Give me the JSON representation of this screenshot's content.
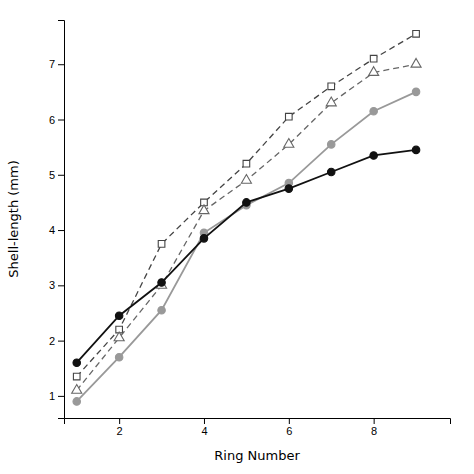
{
  "chart_data": {
    "type": "line",
    "x_label": "Ring Number",
    "y_label": "Shell-length (mm)",
    "x": [
      1,
      2,
      3,
      4,
      5,
      6,
      7,
      8,
      9
    ],
    "series": [
      {
        "color": "#444444",
        "marker": "square-open",
        "line_style": "dashed",
        "values": [
          1.35,
          2.2,
          3.75,
          4.5,
          5.2,
          6.05,
          6.6,
          7.1,
          7.55
        ]
      },
      {
        "color": "#666666",
        "marker": "triangle-open",
        "line_style": "dashed",
        "values": [
          1.1,
          2.05,
          3.0,
          4.35,
          4.9,
          5.55,
          6.3,
          6.85,
          7.0
        ]
      },
      {
        "color": "#999999",
        "marker": "circle",
        "line_style": "solid",
        "values": [
          0.9,
          1.7,
          2.55,
          3.95,
          4.45,
          4.85,
          5.55,
          6.15,
          6.5
        ]
      },
      {
        "color": "#111111",
        "marker": "circle",
        "line_style": "solid",
        "values": [
          1.6,
          2.45,
          3.05,
          3.85,
          4.5,
          4.75,
          5.05,
          5.35,
          5.45
        ]
      }
    ],
    "xlim": [
      0.7,
      9.8
    ],
    "ylim": [
      0.6,
      7.8
    ],
    "xticks": [
      2,
      4,
      6,
      8
    ],
    "yticks": [
      1,
      2,
      3,
      4,
      5,
      6,
      7
    ],
    "grid": false
  }
}
